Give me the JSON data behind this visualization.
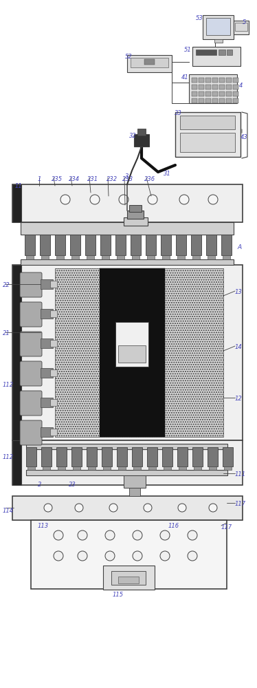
{
  "bg_color": "#ffffff",
  "lc": "#404040",
  "lbc": "#4444bb",
  "figsize": [
    3.74,
    10.0
  ],
  "dpi": 100
}
